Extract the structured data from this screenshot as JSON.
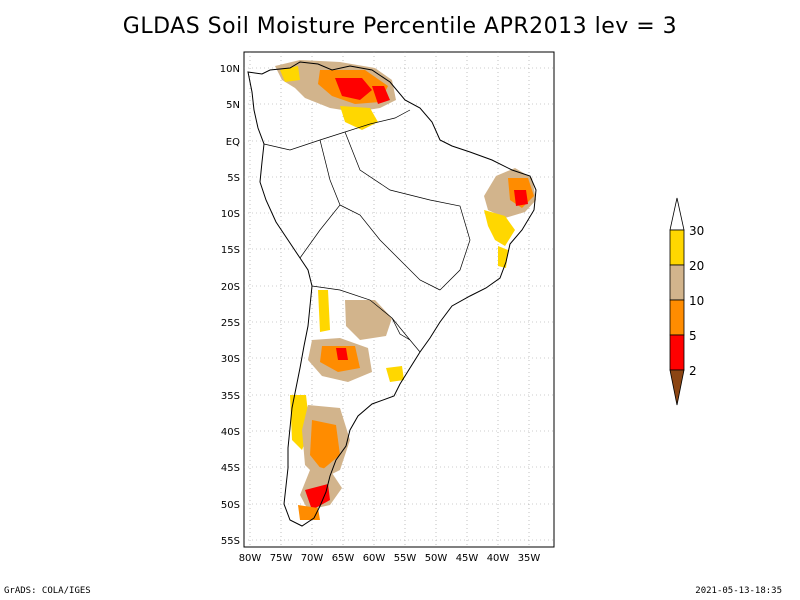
{
  "title": "GLDAS Soil Moisture Percentile APR2013 lev = 3",
  "lat_labels": [
    "10N",
    "5N",
    "EQ",
    "5S",
    "10S",
    "15S",
    "20S",
    "25S",
    "30S",
    "35S",
    "40S",
    "45S",
    "50S",
    "55S"
  ],
  "lon_labels": [
    "80W",
    "75W",
    "70W",
    "65W",
    "60W",
    "55W",
    "50W",
    "45W",
    "40W",
    "35W"
  ],
  "colorbar": {
    "labels": [
      "30",
      "20",
      "10",
      "5",
      "2"
    ],
    "colors": [
      "#ffffff",
      "#ffd700",
      "#d2b48c",
      "#ff8c00",
      "#ff0000",
      "#8b4513"
    ]
  },
  "footer_left": "GrADS: COLA/IGES",
  "footer_right": "2021-05-13-18:35"
}
